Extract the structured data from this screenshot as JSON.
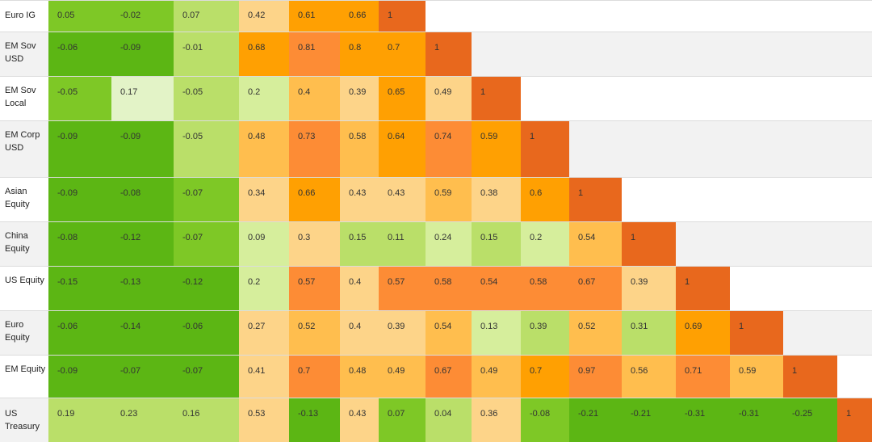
{
  "chart_data": {
    "type": "heatmap",
    "title": "",
    "colors": {
      "c1": "#5cb614",
      "c2": "#7ec826",
      "c3": "#badf69",
      "c4": "#d6ee9c",
      "c5": "#e3f3c7",
      "c6": "#fdd489",
      "c7": "#ffbe4e",
      "c8": "#ffa002",
      "c9": "#fd8c35",
      "c10": "#e8681d"
    },
    "rows": [
      {
        "label": "Euro IG",
        "values": [
          "0.05",
          "-0.02",
          "0.07",
          "0.42",
          "0.61",
          "0.66",
          "1"
        ],
        "colors": [
          "c2",
          "c2",
          "c3",
          "c6",
          "c8",
          "c8",
          "c10"
        ]
      },
      {
        "label": "EM Sov USD",
        "values": [
          "-0.06",
          "-0.09",
          "-0.01",
          "0.68",
          "0.81",
          "0.8",
          "0.7",
          "1"
        ],
        "colors": [
          "c1",
          "c1",
          "c3",
          "c8",
          "c9",
          "c8",
          "c8",
          "c10"
        ]
      },
      {
        "label": "EM Sov Local",
        "values": [
          "-0.05",
          "0.17",
          "-0.05",
          "0.2",
          "0.4",
          "0.39",
          "0.65",
          "0.49",
          "1"
        ],
        "colors": [
          "c2",
          "c5",
          "c3",
          "c4",
          "c7",
          "c6",
          "c8",
          "c6",
          "c10"
        ]
      },
      {
        "label": "EM Corp USD",
        "values": [
          "-0.09",
          "-0.09",
          "-0.05",
          "0.48",
          "0.73",
          "0.58",
          "0.64",
          "0.74",
          "0.59",
          "1"
        ],
        "colors": [
          "c1",
          "c1",
          "c3",
          "c7",
          "c9",
          "c7",
          "c8",
          "c9",
          "c8",
          "c10"
        ]
      },
      {
        "label": "Asian Equity",
        "values": [
          "-0.09",
          "-0.08",
          "-0.07",
          "0.34",
          "0.66",
          "0.43",
          "0.43",
          "0.59",
          "0.38",
          "0.6",
          "1"
        ],
        "colors": [
          "c1",
          "c1",
          "c2",
          "c6",
          "c8",
          "c6",
          "c6",
          "c7",
          "c6",
          "c8",
          "c10"
        ]
      },
      {
        "label": "China Equity",
        "values": [
          "-0.08",
          "-0.12",
          "-0.07",
          "0.09",
          "0.3",
          "0.15",
          "0.11",
          "0.24",
          "0.15",
          "0.2",
          "0.54",
          "1"
        ],
        "colors": [
          "c1",
          "c1",
          "c2",
          "c4",
          "c6",
          "c3",
          "c3",
          "c4",
          "c3",
          "c4",
          "c7",
          "c10"
        ]
      },
      {
        "label": "US Equity",
        "values": [
          "-0.15",
          "-0.13",
          "-0.12",
          "0.2",
          "0.57",
          "0.4",
          "0.57",
          "0.58",
          "0.54",
          "0.58",
          "0.67",
          "0.39",
          "1"
        ],
        "colors": [
          "c1",
          "c1",
          "c1",
          "c4",
          "c9",
          "c6",
          "c9",
          "c9",
          "c9",
          "c9",
          "c9",
          "c6",
          "c10"
        ]
      },
      {
        "label": "Euro Equity",
        "values": [
          "-0.06",
          "-0.14",
          "-0.06",
          "0.27",
          "0.52",
          "0.4",
          "0.39",
          "0.54",
          "0.13",
          "0.39",
          "0.52",
          "0.31",
          "0.69",
          "1"
        ],
        "colors": [
          "c1",
          "c1",
          "c1",
          "c6",
          "c7",
          "c6",
          "c6",
          "c7",
          "c4",
          "c3",
          "c7",
          "c3",
          "c8",
          "c10"
        ]
      },
      {
        "label": "EM Equity",
        "values": [
          "-0.09",
          "-0.07",
          "-0.07",
          "0.41",
          "0.7",
          "0.48",
          "0.49",
          "0.67",
          "0.49",
          "0.7",
          "0.97",
          "0.56",
          "0.71",
          "0.59",
          "1"
        ],
        "colors": [
          "c1",
          "c1",
          "c1",
          "c6",
          "c9",
          "c7",
          "c7",
          "c9",
          "c7",
          "c8",
          "c9",
          "c7",
          "c9",
          "c7",
          "c10"
        ]
      },
      {
        "label": "US Treasury",
        "values": [
          "0.19",
          "0.23",
          "0.16",
          "0.53",
          "-0.13",
          "0.43",
          "0.07",
          "0.04",
          "0.36",
          "-0.08",
          "-0.21",
          "-0.21",
          "-0.31",
          "-0.31",
          "-0.25",
          "1"
        ],
        "colors": [
          "c3",
          "c3",
          "c3",
          "c6",
          "c1",
          "c6",
          "c2",
          "c3",
          "c6",
          "c2",
          "c1",
          "c1",
          "c1",
          "c1",
          "c1",
          "c10"
        ]
      }
    ]
  }
}
